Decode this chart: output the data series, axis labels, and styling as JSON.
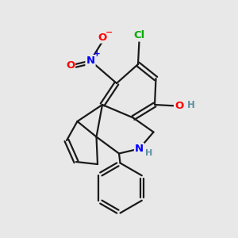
{
  "background_color": "#e8e8e8",
  "bond_color": "#1a1a1a",
  "atom_colors": {
    "N": "#0000ff",
    "O": "#ff0000",
    "Cl": "#00aa00",
    "H_teal": "#5f8fa0",
    "C": "#1a1a1a"
  },
  "figsize": [
    3.0,
    3.0
  ],
  "dpi": 100
}
